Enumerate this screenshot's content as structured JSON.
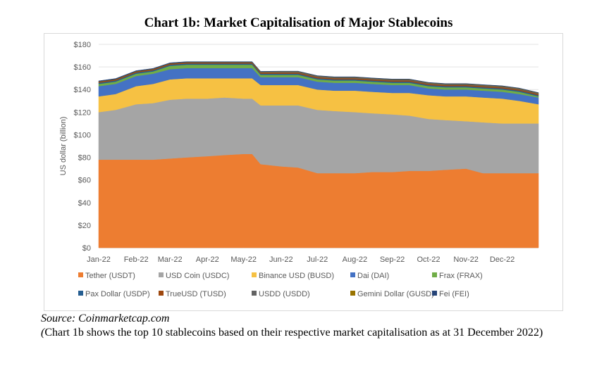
{
  "title": "Chart 1b: Market Capitalisation of Major Stablecoins",
  "source": "Source: Coinmarketcap.com",
  "note_paren": "(",
  "note_text": "Chart 1b shows the top 10 stablecoins based on their respective market capitalisation as at 31 December 2022)",
  "chart_data": {
    "type": "area",
    "title": "Chart 1b: Market Capitalisation of Major Stablecoins",
    "ylabel": "US dollar (billion)",
    "xlabel": "",
    "ylim": [
      0,
      180
    ],
    "yticks": [
      "$0",
      "$20",
      "$40",
      "$60",
      "$80",
      "$100",
      "$120",
      "$140",
      "$160",
      "$180"
    ],
    "xticks": [
      "Jan-22",
      "Feb-22",
      "Mar-22",
      "Apr-22",
      "May-22",
      "Jun-22",
      "Jul-22",
      "Aug-22",
      "Sep-22",
      "Oct-22",
      "Nov-22",
      "Dec-22"
    ],
    "grid": "horizontal",
    "legend_position": "bottom",
    "x": [
      "2022-01-01",
      "2022-01-15",
      "2022-02-01",
      "2022-02-15",
      "2022-03-01",
      "2022-03-15",
      "2022-04-01",
      "2022-04-15",
      "2022-05-01",
      "2022-05-08",
      "2022-05-15",
      "2022-06-01",
      "2022-06-15",
      "2022-07-01",
      "2022-07-15",
      "2022-08-01",
      "2022-08-15",
      "2022-09-01",
      "2022-09-15",
      "2022-10-01",
      "2022-10-15",
      "2022-11-01",
      "2022-11-15",
      "2022-12-01",
      "2022-12-15",
      "2022-12-31"
    ],
    "series": [
      {
        "name": "Tether (USDT)",
        "color": "#ed7d31",
        "values": [
          78,
          78,
          78,
          78,
          79,
          80,
          81,
          82,
          83,
          83,
          74,
          72,
          71,
          66,
          66,
          66,
          67,
          67,
          68,
          68,
          69,
          70,
          66,
          66,
          66,
          66
        ]
      },
      {
        "name": "USD Coin (USDC)",
        "color": "#a5a5a5",
        "values": [
          42,
          44,
          49,
          50,
          52,
          52,
          51,
          51,
          49,
          49,
          52,
          54,
          55,
          56,
          55,
          54,
          52,
          51,
          49,
          46,
          44,
          42,
          45,
          44,
          44,
          44
        ]
      },
      {
        "name": "Binance USD (BUSD)",
        "color": "#f6c143",
        "values": [
          14,
          14,
          16,
          17,
          18,
          18,
          18,
          17,
          18,
          18,
          18,
          18,
          18,
          18,
          18,
          19,
          19,
          19,
          20,
          21,
          21,
          22,
          22,
          22,
          20,
          17
        ]
      },
      {
        "name": "Dai (DAI)",
        "color": "#4472c4",
        "values": [
          9,
          9,
          9,
          9,
          9,
          9,
          9,
          9,
          9,
          9,
          7,
          7,
          7,
          7,
          7,
          7,
          7,
          7,
          7,
          6,
          6,
          6,
          6,
          6,
          6,
          6
        ]
      },
      {
        "name": "Frax (FRAX)",
        "color": "#70ad47",
        "values": [
          2,
          2,
          2,
          2,
          3,
          3,
          3,
          3,
          3,
          3,
          2,
          2,
          2,
          2,
          2,
          2,
          2,
          2,
          2,
          2,
          2,
          2,
          2,
          2,
          2,
          1
        ]
      },
      {
        "name": "Pax Dollar (USDP)",
        "color": "#255e91",
        "values": [
          1,
          1,
          1,
          1,
          1,
          1,
          1,
          1,
          1,
          1,
          1,
          1,
          1,
          1,
          1,
          1,
          1,
          1,
          1,
          1,
          1,
          1,
          1,
          1,
          1,
          1
        ]
      },
      {
        "name": "TrueUSD (TUSD)",
        "color": "#9e480e",
        "values": [
          1,
          1,
          1,
          1,
          1,
          1,
          1,
          1,
          1,
          1,
          1,
          1,
          1,
          1,
          1,
          1,
          1,
          1,
          1,
          1,
          1,
          1,
          1,
          1,
          1,
          1
        ]
      },
      {
        "name": "USDD (USDD)",
        "color": "#636363",
        "values": [
          0,
          0,
          0,
          0,
          0,
          0,
          0,
          0,
          0,
          0,
          0.5,
          0.7,
          0.7,
          0.7,
          0.7,
          0.7,
          0.7,
          0.7,
          0.7,
          0.7,
          0.7,
          0.7,
          0.7,
          0.7,
          0.7,
          0.7
        ]
      },
      {
        "name": "Gemini Dollar (GUSD)",
        "color": "#997300",
        "values": [
          0.2,
          0.2,
          0.2,
          0.2,
          0.2,
          0.2,
          0.2,
          0.2,
          0.2,
          0.2,
          0.3,
          0.3,
          0.3,
          0.3,
          0.3,
          0.3,
          0.3,
          0.3,
          0.3,
          0.3,
          0.3,
          0.3,
          0.3,
          0.3,
          0.3,
          0.3
        ]
      },
      {
        "name": "Fei (FEI)",
        "color": "#264478",
        "values": [
          0.5,
          0.5,
          0.5,
          0.5,
          0.5,
          0.5,
          0.5,
          0.5,
          0.5,
          0.5,
          0.3,
          0.3,
          0.3,
          0.3,
          0.3,
          0.3,
          0.3,
          0.3,
          0.3,
          0.3,
          0.3,
          0.3,
          0.3,
          0.3,
          0.3,
          0.3
        ]
      }
    ]
  }
}
